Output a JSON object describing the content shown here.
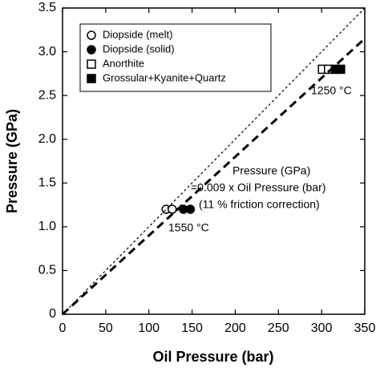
{
  "chart_data": {
    "type": "scatter",
    "x_label": "Oil Pressure (bar)",
    "y_label": "Pressure (GPa)",
    "xlim": [
      0,
      350
    ],
    "ylim": [
      0,
      3.5
    ],
    "xticks": [
      0,
      50,
      100,
      150,
      200,
      250,
      300,
      350
    ],
    "yticks": [
      0,
      0.5,
      {
        "value": 1,
        "label": "1.0"
      },
      1.5,
      {
        "value": 2,
        "label": "2.0"
      },
      2.5,
      {
        "value": 3,
        "label": "3.0"
      },
      3.5
    ],
    "grid": false,
    "legend": "upper left",
    "series": [
      {
        "name": "Diopside (melt)",
        "color": "#000000",
        "marker": "open-circle",
        "x": [
          120,
          127
        ],
        "values": [
          1.2,
          1.2
        ]
      },
      {
        "name": "Diopside (solid)",
        "color": "#000000",
        "marker": "filled-circle",
        "x": [
          140,
          148
        ],
        "values": [
          1.2,
          1.2
        ]
      },
      {
        "name": "Anorthite",
        "color": "#000000",
        "marker": "open-square",
        "x": [
          301,
          308
        ],
        "values": [
          2.8,
          2.8
        ]
      },
      {
        "name": "Grossular+Kyanite+Quartz",
        "color": "#000000",
        "marker": "filled-square",
        "x": [
          316,
          322
        ],
        "values": [
          2.8,
          2.8
        ]
      },
      {
        "color": "#000000",
        "line_style": "dotted",
        "x": [
          0,
          350
        ],
        "values": [
          0,
          3.5
        ]
      },
      {
        "color": "#000000",
        "line_style": "dashed",
        "x": [
          0,
          350
        ],
        "values": [
          0,
          3.15
        ]
      }
    ],
    "annotations": [
      "Pressure (GPa)",
      "=0.009 x Oil Pressure (bar)",
      "(11 % friction correction)",
      "1550 °C",
      "1250 °C"
    ]
  }
}
